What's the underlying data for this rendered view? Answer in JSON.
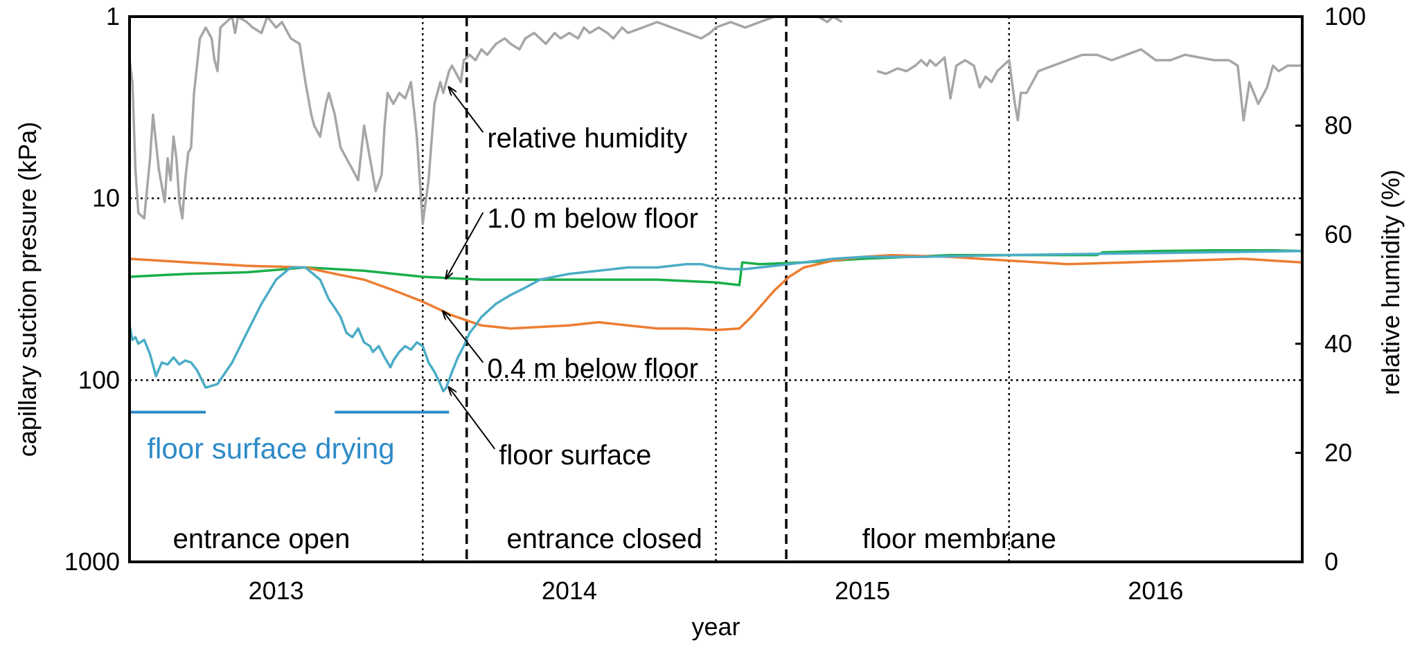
{
  "chart_data": {
    "type": "line",
    "xlabel": "year",
    "ylabel_left": "capillary suction presure (kPa)",
    "ylabel_right": "relative humidity (%)",
    "left_axis": {
      "scale": "log",
      "reversed": true,
      "range": [
        1,
        1000
      ],
      "ticks": [
        "1",
        "10",
        "100",
        "1000"
      ]
    },
    "right_axis": {
      "scale": "linear",
      "range": [
        0,
        100
      ],
      "ticks": [
        "0",
        "20",
        "40",
        "60",
        "80",
        "100"
      ]
    },
    "x_range": [
      2012.5,
      2016.5
    ],
    "x_ticks": [
      {
        "label": "2013",
        "x": 2013.0
      },
      {
        "label": "2014",
        "x": 2014.0
      },
      {
        "label": "2015",
        "x": 2015.0
      },
      {
        "label": "2016",
        "x": 2016.0
      }
    ],
    "grid": "dotted at 10 and 100 kPa and at year boundaries",
    "phase_boundaries": [
      2013.65,
      2014.74
    ],
    "phases": [
      {
        "label": "entrance open",
        "x": 2012.95
      },
      {
        "label": "entrance closed",
        "x": 2014.12
      },
      {
        "label": "floor membrane",
        "x": 2015.33
      }
    ],
    "drying": {
      "label": "floor surface drying",
      "periods": [
        [
          2012.5,
          2012.76
        ],
        [
          2013.2,
          2013.59
        ]
      ]
    },
    "annotations": [
      {
        "label": "relative humidity",
        "target": "relative humidity",
        "text_x": 2013.72,
        "text_rh": 76,
        "point_x": 2013.59,
        "point_rh": 87
      },
      {
        "label": "1.0 m below floor",
        "target": "1.0 m below floor",
        "text_x": 2013.72,
        "text_kpa": 14.5,
        "point_x": 2013.58,
        "point_kpa": 27.5
      },
      {
        "label": "0.4 m below floor",
        "target": "0.4 m below floor",
        "text_x": 2013.72,
        "text_kpa": 97,
        "point_x": 2013.57,
        "point_kpa": 42
      },
      {
        "label": "floor surface",
        "target": "floor surface",
        "text_x": 2013.76,
        "text_kpa": 290,
        "point_x": 2013.59,
        "point_kpa": 110
      }
    ],
    "series": [
      {
        "name": "relative humidity",
        "axis": "right",
        "color": "#A6A6A6",
        "segments": [
          {
            "x": [
              2012.5,
              2012.51,
              2012.52,
              2012.53,
              2012.55,
              2012.57,
              2012.58,
              2012.6,
              2012.62,
              2012.63,
              2012.64,
              2012.65,
              2012.66,
              2012.67,
              2012.68,
              2012.69,
              2012.7,
              2012.71,
              2012.72,
              2012.74,
              2012.76,
              2012.78,
              2012.79,
              2012.8,
              2012.81,
              2012.83,
              2012.85,
              2012.86,
              2012.87,
              2012.9,
              2012.92,
              2012.95,
              2012.97,
              2013.0,
              2013.02,
              2013.05,
              2013.08,
              2013.1,
              2013.12,
              2013.13,
              2013.15,
              2013.17,
              2013.18,
              2013.2,
              2013.22,
              2013.24,
              2013.26,
              2013.28,
              2013.3,
              2013.32,
              2013.34,
              2013.36,
              2013.37,
              2013.38,
              2013.4,
              2013.42,
              2013.44,
              2013.46,
              2013.48,
              2013.5,
              2013.52,
              2013.54,
              2013.55,
              2013.56,
              2013.57,
              2013.58,
              2013.59,
              2013.6,
              2013.61,
              2013.62,
              2013.63,
              2013.64,
              2013.66,
              2013.68,
              2013.7,
              2013.72,
              2013.75,
              2013.78,
              2013.8,
              2013.83,
              2013.85,
              2013.88,
              2013.9,
              2013.92,
              2013.95,
              2013.97,
              2014.0,
              2014.03,
              2014.05,
              2014.07,
              2014.1,
              2014.13,
              2014.15,
              2014.18,
              2014.2,
              2014.25,
              2014.3,
              2014.35,
              2014.4,
              2014.45,
              2014.48,
              2014.5,
              2014.55,
              2014.6,
              2014.65,
              2014.7,
              2014.75,
              2014.8,
              2014.85,
              2014.88,
              2014.9,
              2014.93
            ],
            "values": [
              92,
              88,
              72,
              64,
              63,
              74,
              82,
              72,
              66,
              74,
              70,
              78,
              74,
              66,
              63,
              70,
              75,
              76,
              86,
              96,
              98,
              96,
              92,
              90,
              98,
              99,
              100,
              97,
              100,
              99,
              98,
              97,
              100,
              98,
              99,
              96,
              95,
              88,
              82,
              80,
              78,
              84,
              86,
              82,
              76,
              74,
              72,
              70,
              80,
              74,
              68,
              71,
              80,
              86,
              84,
              86,
              85,
              88,
              78,
              62,
              70,
              84,
              86,
              88,
              86,
              88,
              90,
              91,
              90,
              89,
              88,
              92,
              93,
              92,
              94,
              93,
              95,
              96,
              95,
              94,
              96,
              97,
              96,
              95,
              97,
              96,
              97,
              96,
              98,
              97,
              98,
              97,
              96,
              98,
              97,
              98,
              99,
              98,
              97,
              96,
              97,
              98,
              99,
              98,
              99,
              100,
              100,
              100,
              100,
              99,
              100,
              99
            ]
          },
          {
            "x": [
              2015.05,
              2015.08,
              2015.1,
              2015.12,
              2015.15,
              2015.18,
              2015.2,
              2015.22,
              2015.23,
              2015.25,
              2015.28,
              2015.3,
              2015.32,
              2015.35,
              2015.38,
              2015.4,
              2015.42,
              2015.44,
              2015.46,
              2015.48,
              2015.5,
              2015.52,
              2015.53,
              2015.54,
              2015.56,
              2015.58,
              2015.6,
              2015.65,
              2015.7,
              2015.75,
              2015.8,
              2015.85,
              2015.9,
              2015.95,
              2016.0,
              2016.05,
              2016.1,
              2016.15,
              2016.2,
              2016.25,
              2016.28,
              2016.3,
              2016.32,
              2016.35,
              2016.38,
              2016.4,
              2016.42,
              2016.45,
              2016.5
            ],
            "values": [
              90,
              89.5,
              90,
              90.5,
              90,
              91,
              92,
              91,
              92,
              91,
              92.5,
              85,
              91,
              92,
              91,
              87,
              89,
              88,
              90,
              91,
              92,
              84,
              81,
              86,
              86,
              88,
              90,
              91,
              92,
              93,
              93,
              92,
              93,
              94,
              92,
              92,
              93,
              92.5,
              92,
              92,
              91,
              81,
              88,
              84,
              87,
              91,
              90,
              91,
              91
            ]
          }
        ]
      },
      {
        "name": "1.0 m below floor",
        "axis": "left",
        "color": "#1AAE4A",
        "segments": [
          {
            "x": [
              2012.5,
              2012.7,
              2012.9,
              2013.1,
              2013.3,
              2013.5,
              2013.7,
              2013.9,
              2014.1,
              2014.3,
              2014.5,
              2014.58,
              2014.59,
              2014.65,
              2014.8,
              2015.0,
              2015.3,
              2015.6,
              2015.8,
              2015.82,
              2016.0,
              2016.2,
              2016.4,
              2016.5
            ],
            "values": [
              27,
              26,
              25.5,
              24,
              25,
              27,
              28,
              28,
              28,
              28,
              29,
              30,
              22.5,
              23,
              22.5,
              21.5,
              20.5,
              20.5,
              20.5,
              19.8,
              19.5,
              19.3,
              19.3,
              19.5
            ]
          }
        ]
      },
      {
        "name": "0.4 m below floor",
        "axis": "left",
        "color": "#ED7D31",
        "segments": [
          {
            "x": [
              2012.5,
              2012.7,
              2012.9,
              2013.1,
              2013.2,
              2013.3,
              2013.4,
              2013.5,
              2013.6,
              2013.7,
              2013.8,
              2014.0,
              2014.1,
              2014.2,
              2014.3,
              2014.4,
              2014.5,
              2014.58,
              2014.62,
              2014.66,
              2014.7,
              2014.75,
              2014.8,
              2014.9,
              2015.0,
              2015.1,
              2015.3,
              2015.5,
              2015.7,
              2015.9,
              2016.1,
              2016.3,
              2016.5
            ],
            "values": [
              21.5,
              22.5,
              23.5,
              24,
              26,
              28,
              32,
              37,
              44,
              50,
              52,
              50,
              48,
              50,
              52,
              52,
              53,
              52,
              45,
              38,
              32,
              27,
              24,
              22,
              21,
              20.5,
              21,
              22,
              23,
              22.5,
              22,
              21.5,
              22.5
            ]
          }
        ]
      },
      {
        "name": "floor surface",
        "axis": "left",
        "color": "#4BACC6",
        "segments": [
          {
            "x": [
              2012.5,
              2012.51,
              2012.52,
              2012.53,
              2012.55,
              2012.57,
              2012.59,
              2012.61,
              2012.63,
              2012.65,
              2012.67,
              2012.69,
              2012.71,
              2012.73,
              2012.76,
              2012.8,
              2012.85,
              2012.9,
              2012.95,
              2013.0,
              2013.05,
              2013.1,
              2013.15,
              2013.18,
              2013.2,
              2013.22,
              2013.24,
              2013.26,
              2013.28,
              2013.3,
              2013.32,
              2013.33,
              2013.35,
              2013.37,
              2013.39,
              2013.4,
              2013.42,
              2013.44,
              2013.46,
              2013.48,
              2013.5,
              2013.52,
              2013.54,
              2013.56,
              2013.57,
              2013.58,
              2013.59,
              2013.6,
              2013.62,
              2013.64,
              2013.66,
              2013.68,
              2013.7,
              2013.72,
              2013.75,
              2013.8,
              2013.85,
              2013.9,
              2014.0,
              2014.1,
              2014.2,
              2014.3,
              2014.4,
              2014.45,
              2014.5,
              2014.55,
              2014.6,
              2014.65,
              2014.7,
              2014.8,
              2014.9,
              2015.0,
              2015.2,
              2015.5,
              2016.0,
              2016.5
            ],
            "values": [
              50,
              60,
              58,
              63,
              60,
              72,
              95,
              80,
              82,
              75,
              82,
              78,
              80,
              88,
              110,
              105,
              80,
              55,
              38,
              28,
              24,
              24,
              28,
              36,
              40,
              45,
              55,
              58,
              52,
              62,
              65,
              70,
              65,
              75,
              85,
              78,
              70,
              65,
              68,
              62,
              65,
              80,
              90,
              105,
              115,
              110,
              100,
              90,
              75,
              65,
              55,
              50,
              45,
              42,
              38,
              34,
              31,
              28,
              26,
              25,
              24,
              24,
              23,
              23,
              24,
              24.5,
              24.5,
              24,
              23.5,
              22.5,
              21.5,
              21,
              21,
              20.5,
              20,
              19.5
            ]
          }
        ]
      }
    ]
  }
}
